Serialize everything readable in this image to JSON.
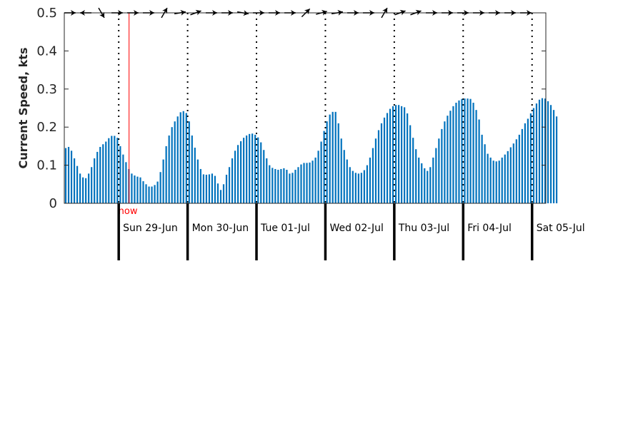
{
  "colors": {
    "bar": "#0072bd",
    "now_line": "#ff0000",
    "axis": "#262626",
    "separator": "#000000"
  },
  "now_label": "now",
  "chart_data": {
    "type": "bar",
    "ylabel": "Current Speed, kts",
    "ylim": [
      0,
      0.5
    ],
    "yticks": [
      "0",
      "0.1",
      "0.2",
      "0.3",
      "0.4",
      "0.5"
    ],
    "x_unit": "days",
    "xlim": [
      -0.79,
      6.2
    ],
    "now": 0.15,
    "day_labels": [
      {
        "x": 0,
        "label": "Sun 29-Jun"
      },
      {
        "x": 1,
        "label": "Mon 30-Jun"
      },
      {
        "x": 2,
        "label": "Tue 01-Jul"
      },
      {
        "x": 3,
        "label": "Wed 02-Jul"
      },
      {
        "x": 4,
        "label": "Thu 03-Jul"
      },
      {
        "x": 5,
        "label": "Fri 04-Jul"
      },
      {
        "x": 6,
        "label": "Sat 05-Jul"
      }
    ],
    "direction_arrows": "flow-direction arrows along the top edge",
    "series": [
      {
        "x_start": -0.79,
        "x_step": 0.04167,
        "values": [
          0.145,
          0.148,
          0.138,
          0.118,
          0.098,
          0.078,
          0.068,
          0.066,
          0.078,
          0.095,
          0.118,
          0.135,
          0.148,
          0.155,
          0.162,
          0.171,
          0.177,
          0.177,
          0.172,
          0.15,
          0.128,
          0.108,
          0.09,
          0.078,
          0.073,
          0.07,
          0.068,
          0.058,
          0.05,
          0.044,
          0.044,
          0.048,
          0.057,
          0.082,
          0.115,
          0.15,
          0.178,
          0.2,
          0.215,
          0.228,
          0.239,
          0.242,
          0.237,
          0.215,
          0.178,
          0.146,
          0.115,
          0.09,
          0.076,
          0.075,
          0.076,
          0.078,
          0.072,
          0.052,
          0.035,
          0.05,
          0.075,
          0.095,
          0.118,
          0.138,
          0.153,
          0.163,
          0.172,
          0.178,
          0.182,
          0.183,
          0.18,
          0.173,
          0.16,
          0.14,
          0.118,
          0.1,
          0.093,
          0.09,
          0.088,
          0.09,
          0.092,
          0.088,
          0.078,
          0.08,
          0.088,
          0.095,
          0.102,
          0.106,
          0.106,
          0.107,
          0.112,
          0.12,
          0.138,
          0.162,
          0.19,
          0.215,
          0.233,
          0.24,
          0.24,
          0.21,
          0.17,
          0.14,
          0.115,
          0.095,
          0.085,
          0.08,
          0.078,
          0.08,
          0.087,
          0.1,
          0.12,
          0.145,
          0.17,
          0.192,
          0.21,
          0.225,
          0.237,
          0.248,
          0.255,
          0.258,
          0.258,
          0.255,
          0.252,
          0.236,
          0.205,
          0.172,
          0.142,
          0.12,
          0.105,
          0.092,
          0.085,
          0.095,
          0.12,
          0.145,
          0.17,
          0.195,
          0.215,
          0.23,
          0.243,
          0.255,
          0.264,
          0.27,
          0.274,
          0.275,
          0.275,
          0.274,
          0.264,
          0.245,
          0.22,
          0.18,
          0.155,
          0.13,
          0.12,
          0.112,
          0.11,
          0.112,
          0.12,
          0.128,
          0.137,
          0.147,
          0.157,
          0.168,
          0.18,
          0.195,
          0.21,
          0.222,
          0.236,
          0.25,
          0.262,
          0.272,
          0.276,
          0.275,
          0.268,
          0.258,
          0.245,
          0.228
        ]
      }
    ]
  }
}
